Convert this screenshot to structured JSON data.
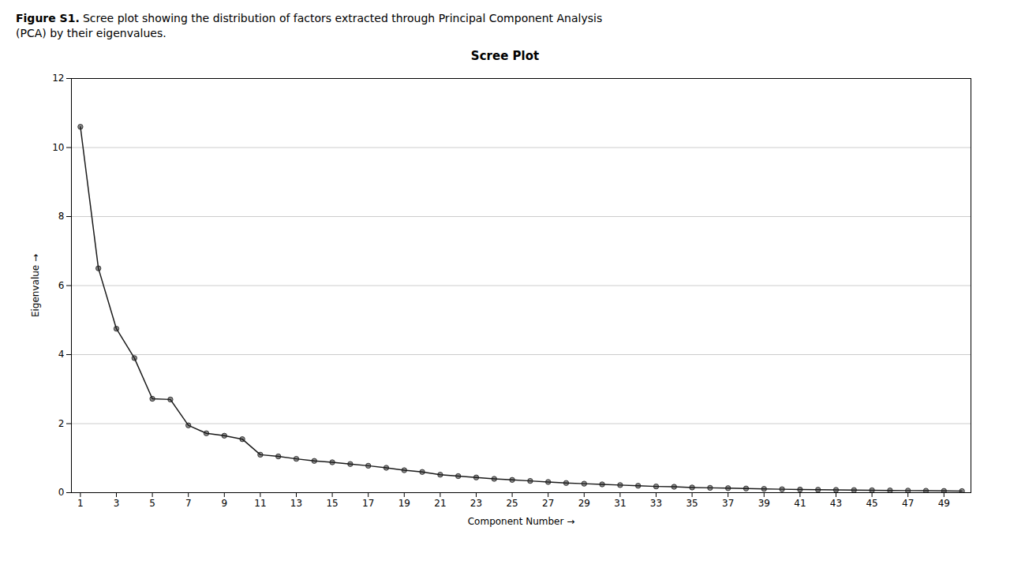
{
  "chart_data": {
    "type": "line",
    "title": "Scree Plot",
    "caption_bold": "Figure S1.",
    "caption": "Scree plot showing the distribution of factors extracted through Principal Component Analysis\n(PCA) by their eigenvalues.",
    "xlabel": "Component Number",
    "ylabel": "Eigenvalue",
    "x": [
      1,
      2,
      3,
      4,
      5,
      6,
      7,
      8,
      9,
      10,
      11,
      12,
      13,
      14,
      15,
      16,
      17,
      18,
      19,
      20,
      21,
      22,
      23,
      24,
      25,
      26,
      27,
      28,
      29,
      30,
      31,
      32,
      33,
      34,
      35,
      36,
      37,
      38,
      39,
      40,
      41,
      42,
      43,
      44,
      45,
      46,
      47,
      48,
      49,
      50
    ],
    "values": [
      10.6,
      6.5,
      4.75,
      3.9,
      2.72,
      2.7,
      1.95,
      1.72,
      1.65,
      1.55,
      1.1,
      1.05,
      0.98,
      0.92,
      0.88,
      0.83,
      0.78,
      0.72,
      0.65,
      0.6,
      0.52,
      0.48,
      0.44,
      0.4,
      0.37,
      0.34,
      0.31,
      0.28,
      0.26,
      0.24,
      0.22,
      0.2,
      0.18,
      0.17,
      0.15,
      0.14,
      0.13,
      0.12,
      0.11,
      0.1,
      0.09,
      0.085,
      0.08,
      0.075,
      0.07,
      0.065,
      0.06,
      0.055,
      0.05,
      0.045
    ],
    "xlim": [
      0.5,
      50.5
    ],
    "xticks": [
      1,
      3,
      5,
      7,
      9,
      11,
      13,
      15,
      17,
      19,
      21,
      23,
      25,
      27,
      29,
      31,
      33,
      35,
      37,
      39,
      41,
      43,
      45,
      47,
      49
    ],
    "ylim": [
      0,
      12
    ],
    "yticks": [
      0,
      2,
      4,
      6,
      8,
      10,
      12
    ],
    "grid": true,
    "color": "#1a1a1a",
    "marker": "circle"
  }
}
